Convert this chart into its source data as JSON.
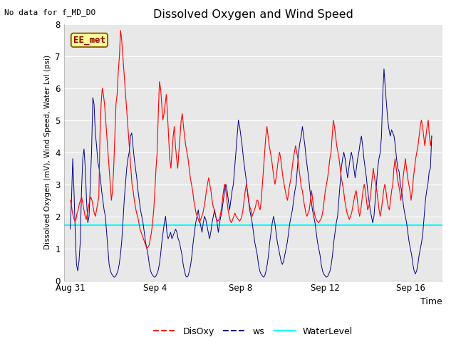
{
  "title": "Dissolved Oxygen and Wind Speed",
  "xlabel": "Time",
  "ylabel": "Dissolved Oxygen (mV), Wind Speed, Water Lvl (psi)",
  "ylim": [
    0.0,
    8.0
  ],
  "yticks": [
    0.0,
    1.0,
    2.0,
    3.0,
    4.0,
    5.0,
    6.0,
    7.0,
    8.0
  ],
  "no_data_text": "No data for f_MD_DO",
  "ee_met_label": "EE_met",
  "water_level_value": 1.72,
  "legend_labels": [
    "DisOxy",
    "ws",
    "WaterLevel"
  ],
  "background_color": "#e8e8e8",
  "xtick_labels": [
    "Aug 31",
    "Sep 4",
    "Sep 8",
    "Sep 12",
    "Sep 16"
  ],
  "xtick_positions": [
    0,
    4,
    8,
    12,
    16
  ],
  "xlim": [
    -0.3,
    17.5
  ],
  "disoxy": [
    2.5,
    2.35,
    2.1,
    1.95,
    1.85,
    1.9,
    2.1,
    2.2,
    2.4,
    2.5,
    2.6,
    2.4,
    2.2,
    2.0,
    1.9,
    2.1,
    2.3,
    2.5,
    2.6,
    2.5,
    2.3,
    2.1,
    2.0,
    2.2,
    2.4,
    2.6,
    4.5,
    5.5,
    6.0,
    5.8,
    5.5,
    5.0,
    4.5,
    4.0,
    3.5,
    3.0,
    2.5,
    2.8,
    3.5,
    4.5,
    5.5,
    5.8,
    6.5,
    7.0,
    7.8,
    7.5,
    7.0,
    6.5,
    6.0,
    5.5,
    5.0,
    4.5,
    4.0,
    3.5,
    3.0,
    2.8,
    2.5,
    2.3,
    2.1,
    2.0,
    1.8,
    1.6,
    1.5,
    1.4,
    1.3,
    1.2,
    1.1,
    1.0,
    1.05,
    1.1,
    1.3,
    1.5,
    1.8,
    2.2,
    2.8,
    3.5,
    4.0,
    5.2,
    6.2,
    6.0,
    5.5,
    5.0,
    5.2,
    5.5,
    5.8,
    5.2,
    4.5,
    3.8,
    3.5,
    4.0,
    4.5,
    4.8,
    4.2,
    3.8,
    3.5,
    4.0,
    4.5,
    5.0,
    5.2,
    4.8,
    4.5,
    4.2,
    4.0,
    3.8,
    3.5,
    3.2,
    3.0,
    2.8,
    2.5,
    2.3,
    2.1,
    2.0,
    1.9,
    1.8,
    1.9,
    2.0,
    2.1,
    2.3,
    2.5,
    2.8,
    3.0,
    3.2,
    3.0,
    2.8,
    2.5,
    2.3,
    2.2,
    2.0,
    1.9,
    1.85,
    1.9,
    2.0,
    2.2,
    2.5,
    2.8,
    3.0,
    2.8,
    2.5,
    2.2,
    2.0,
    1.85,
    1.8,
    1.9,
    2.0,
    2.1,
    2.0,
    1.95,
    1.9,
    1.85,
    1.9,
    2.0,
    2.2,
    2.5,
    2.8,
    3.0,
    2.8,
    2.5,
    2.3,
    2.2,
    2.0,
    2.1,
    2.2,
    2.3,
    2.5,
    2.5,
    2.3,
    2.2,
    2.5,
    3.0,
    3.5,
    4.0,
    4.5,
    4.8,
    4.5,
    4.2,
    4.0,
    3.8,
    3.5,
    3.2,
    3.0,
    3.2,
    3.5,
    3.8,
    4.0,
    3.8,
    3.5,
    3.2,
    3.0,
    2.8,
    2.6,
    2.5,
    2.8,
    3.0,
    3.2,
    3.5,
    3.8,
    4.0,
    4.2,
    4.0,
    3.8,
    3.5,
    3.2,
    2.9,
    2.8,
    2.5,
    2.3,
    2.1,
    2.0,
    2.1,
    2.2,
    2.5,
    2.8,
    2.5,
    2.2,
    2.0,
    1.9,
    1.85,
    1.8,
    1.85,
    1.9,
    2.0,
    2.2,
    2.5,
    2.8,
    3.0,
    3.2,
    3.5,
    3.8,
    4.0,
    4.5,
    5.0,
    4.8,
    4.5,
    4.2,
    4.0,
    3.8,
    3.5,
    3.2,
    3.0,
    2.8,
    2.5,
    2.3,
    2.1,
    2.0,
    1.9,
    2.0,
    2.1,
    2.3,
    2.5,
    2.7,
    2.8,
    2.5,
    2.2,
    2.0,
    2.2,
    2.5,
    2.8,
    3.0,
    2.8,
    2.5,
    2.2,
    2.3,
    2.5,
    2.8,
    3.2,
    3.5,
    3.2,
    3.0,
    2.8,
    2.5,
    2.2,
    2.0,
    2.2,
    2.5,
    2.8,
    3.0,
    2.8,
    2.5,
    2.3,
    2.2,
    2.5,
    2.8,
    3.0,
    3.5,
    3.8,
    3.5,
    3.2,
    3.0,
    2.8,
    2.5,
    2.8,
    3.2,
    3.5,
    3.8,
    3.5,
    3.2,
    3.0,
    2.8,
    2.5,
    2.8,
    3.2,
    3.5,
    3.8,
    4.0,
    4.2,
    4.5,
    4.8,
    5.0,
    4.8,
    4.5,
    4.2,
    4.5,
    4.8,
    5.0,
    4.5,
    4.2,
    4.5
  ],
  "ws": [
    1.6,
    2.5,
    3.8,
    2.8,
    1.5,
    0.5,
    0.3,
    0.6,
    1.2,
    2.8,
    3.8,
    4.1,
    3.5,
    2.5,
    1.8,
    2.0,
    3.0,
    4.0,
    5.7,
    5.5,
    4.6,
    4.2,
    3.7,
    3.5,
    3.2,
    2.8,
    2.5,
    2.2,
    2.0,
    1.5,
    1.0,
    0.5,
    0.3,
    0.2,
    0.15,
    0.1,
    0.12,
    0.2,
    0.3,
    0.5,
    0.8,
    1.2,
    1.8,
    2.5,
    3.0,
    3.5,
    3.8,
    4.0,
    4.5,
    4.6,
    4.2,
    3.8,
    3.5,
    3.2,
    2.8,
    2.5,
    2.2,
    2.0,
    1.8,
    1.5,
    1.2,
    1.0,
    0.8,
    0.5,
    0.3,
    0.2,
    0.15,
    0.1,
    0.12,
    0.2,
    0.3,
    0.5,
    0.8,
    1.2,
    1.5,
    1.8,
    2.0,
    1.5,
    1.3,
    1.4,
    1.5,
    1.3,
    1.4,
    1.5,
    1.6,
    1.5,
    1.3,
    1.2,
    1.0,
    0.8,
    0.5,
    0.3,
    0.15,
    0.1,
    0.15,
    0.3,
    0.5,
    0.8,
    1.2,
    1.5,
    1.8,
    2.0,
    2.2,
    1.9,
    1.7,
    1.5,
    1.8,
    2.0,
    1.9,
    1.7,
    1.5,
    1.3,
    1.5,
    1.8,
    2.0,
    2.2,
    2.0,
    1.8,
    1.5,
    1.8,
    2.0,
    2.2,
    2.5,
    2.8,
    3.0,
    2.8,
    2.5,
    2.2,
    2.5,
    2.8,
    3.0,
    3.5,
    4.0,
    4.5,
    5.0,
    4.8,
    4.5,
    4.2,
    3.8,
    3.5,
    3.2,
    2.8,
    2.5,
    2.2,
    2.0,
    1.8,
    1.5,
    1.2,
    1.0,
    0.8,
    0.5,
    0.3,
    0.2,
    0.15,
    0.1,
    0.15,
    0.3,
    0.5,
    0.8,
    1.2,
    1.5,
    1.8,
    2.0,
    1.8,
    1.5,
    1.2,
    1.0,
    0.8,
    0.6,
    0.5,
    0.6,
    0.8,
    1.0,
    1.2,
    1.5,
    1.8,
    2.0,
    2.2,
    2.5,
    2.8,
    3.0,
    3.5,
    4.0,
    4.3,
    4.5,
    4.8,
    4.5,
    4.2,
    3.8,
    3.5,
    3.2,
    2.8,
    2.5,
    2.2,
    2.0,
    1.8,
    1.5,
    1.2,
    1.0,
    0.8,
    0.5,
    0.3,
    0.2,
    0.15,
    0.1,
    0.12,
    0.2,
    0.3,
    0.5,
    0.8,
    1.2,
    1.5,
    1.8,
    2.0,
    2.5,
    3.0,
    3.5,
    3.8,
    4.0,
    3.8,
    3.5,
    3.2,
    3.5,
    3.8,
    4.0,
    3.8,
    3.5,
    3.2,
    3.5,
    3.8,
    4.0,
    4.3,
    4.5,
    4.2,
    3.8,
    3.5,
    3.2,
    2.8,
    2.5,
    2.2,
    2.0,
    1.8,
    2.0,
    2.5,
    3.0,
    3.5,
    3.8,
    4.0,
    4.5,
    5.8,
    6.6,
    6.0,
    5.5,
    5.0,
    4.7,
    4.5,
    4.7,
    4.6,
    4.5,
    4.2,
    3.8,
    3.5,
    3.4,
    3.0,
    2.8,
    2.5,
    2.2,
    2.0,
    1.8,
    1.5,
    1.2,
    1.0,
    0.8,
    0.5,
    0.3,
    0.2,
    0.3,
    0.5,
    0.8,
    1.0,
    1.2,
    1.5,
    2.0,
    2.5,
    2.8,
    3.0,
    3.4,
    3.5,
    4.5
  ]
}
